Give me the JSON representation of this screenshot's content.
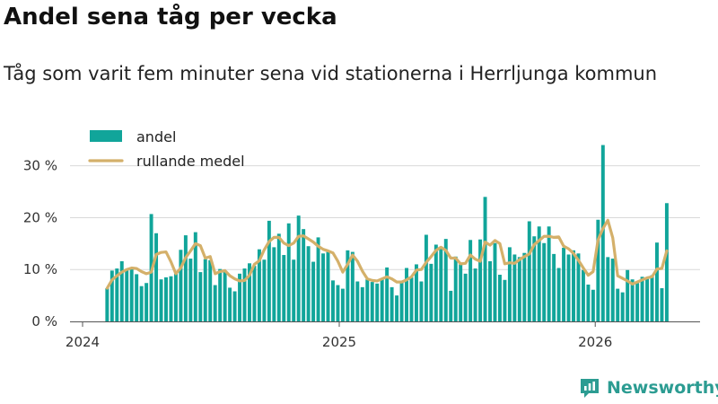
{
  "title": "Andel sena tåg per vecka",
  "subtitle": "Tåg som varit fem minuter sena vid stationerna i Herrljunga kommun",
  "brand": {
    "name": "Newsworthy",
    "icon": "newsworthy-logo-icon",
    "color": "#2c9c92"
  },
  "chart_data": {
    "type": "bar",
    "x_unit": "week",
    "start_week": "2024-02-05",
    "y_unit": "percent",
    "ylim": [
      0,
      36
    ],
    "y_ticks": [
      0,
      10,
      20,
      30
    ],
    "y_tick_labels": [
      "0 %",
      "10 %",
      "20 %",
      "30 %"
    ],
    "x_ticks": [
      "2024-01-01",
      "2025-01-01",
      "2026-01-01"
    ],
    "x_tick_labels": [
      "2024",
      "2025",
      "2026"
    ],
    "grid": true,
    "legend_position": "top-left",
    "series": [
      {
        "name": "andel",
        "kind": "bar",
        "color": "#11a59a",
        "values": [
          6.4,
          9.8,
          10.2,
          11.6,
          9.9,
          10.2,
          9.1,
          6.8,
          7.4,
          20.7,
          17.0,
          8.1,
          8.5,
          8.7,
          9.2,
          13.8,
          16.6,
          12.1,
          17.2,
          9.5,
          12.0,
          11.8,
          7.0,
          10.1,
          9.6,
          6.5,
          5.8,
          9.2,
          10.2,
          11.2,
          10.7,
          13.9,
          11.9,
          19.4,
          14.3,
          16.9,
          12.8,
          18.9,
          11.9,
          20.4,
          17.8,
          14.5,
          11.5,
          16.2,
          13.1,
          13.4,
          7.9,
          7.0,
          6.3,
          13.7,
          13.4,
          7.7,
          6.6,
          8.1,
          7.6,
          7.3,
          8.1,
          10.4,
          6.6,
          5.0,
          7.8,
          10.3,
          8.5,
          11.0,
          7.7,
          16.7,
          11.1,
          14.8,
          14.3,
          15.9,
          5.9,
          12.5,
          11.0,
          9.2,
          15.7,
          10.2,
          15.8,
          24.0,
          11.6,
          15.1,
          9.0,
          8.0,
          14.3,
          12.9,
          12.4,
          13.2,
          19.3,
          16.4,
          18.3,
          15.1,
          18.3,
          13.0,
          10.3,
          14.2,
          12.9,
          13.7,
          13.1,
          9.9,
          7.1,
          6.1,
          19.6,
          34.0,
          12.4,
          12.1,
          6.3,
          5.6,
          9.9,
          8.1,
          7.4,
          8.6,
          8.2,
          8.9,
          15.2,
          6.4,
          22.8
        ]
      },
      {
        "name": "rullande medel",
        "kind": "line",
        "color": "#d4b06a",
        "values": [
          6.4,
          8.0,
          8.8,
          9.5,
          10.0,
          10.3,
          10.2,
          9.6,
          9.2,
          9.5,
          12.9,
          13.3,
          13.4,
          11.5,
          9.2,
          10.3,
          12.3,
          13.6,
          15.0,
          14.6,
          12.2,
          12.5,
          9.2,
          9.6,
          9.8,
          8.8,
          8.2,
          7.8,
          7.9,
          8.9,
          11.0,
          11.7,
          13.8,
          15.4,
          16.2,
          16.2,
          15.1,
          14.6,
          15.1,
          16.4,
          16.5,
          15.9,
          15.3,
          14.5,
          13.9,
          13.6,
          13.2,
          11.6,
          9.5,
          11.0,
          12.8,
          11.6,
          9.7,
          8.2,
          7.9,
          7.8,
          8.2,
          8.6,
          8.2,
          7.6,
          7.6,
          8.0,
          8.6,
          9.9,
          10.0,
          11.4,
          12.5,
          13.7,
          14.3,
          13.7,
          12.2,
          12.2,
          11.1,
          11.2,
          12.8,
          12.0,
          11.6,
          15.3,
          14.7,
          15.6,
          15.0,
          11.1,
          11.3,
          11.2,
          11.9,
          12.5,
          13.0,
          14.8,
          15.6,
          16.4,
          16.4,
          16.2,
          16.3,
          14.5,
          14.0,
          13.1,
          11.8,
          10.3,
          8.9,
          9.6,
          15.7,
          17.9,
          19.5,
          16.1,
          8.8,
          8.3,
          7.8,
          7.2,
          7.6,
          8.0,
          8.4,
          8.6,
          10.1,
          10.2,
          13.6
        ]
      }
    ]
  }
}
